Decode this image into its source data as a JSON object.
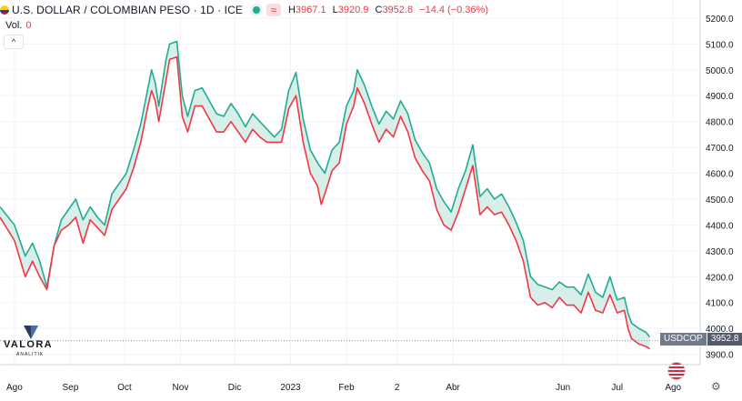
{
  "legend": {
    "title": "U.S. DOLLAR / COLOMBIAN PESO · 1D · ICE",
    "high_label": "H",
    "high": "3967.1",
    "low_label": "L",
    "low": "3920.9",
    "close_label": "C",
    "close": "3952.8",
    "change": "−14.4 (−0.36%)",
    "wave_icon": "≈"
  },
  "volume": {
    "label": "Vol.",
    "value": "0"
  },
  "logo": {
    "name": "VALORA",
    "tagline": "ANALITIK"
  },
  "price_badge": {
    "symbol": "USDCOP",
    "price": "3952.8"
  },
  "colors": {
    "up": "#22ab94",
    "down": "#f23645",
    "up_fill": "#d6eee8",
    "down_fill": "#f8d5d8"
  },
  "chart_data": {
    "type": "area",
    "y_ticks": [
      "5200.0",
      "5100.0",
      "5000.0",
      "4900.0",
      "4800.0",
      "4700.0",
      "4600.0",
      "4500.0",
      "4400.0",
      "4300.0",
      "4200.0",
      "4100.0",
      "4000.0",
      "3900.0"
    ],
    "ylim": [
      3860,
      5270
    ],
    "x_ticks": [
      "Ago",
      "Sep",
      "Oct",
      "Nov",
      "Dic",
      "2023",
      "Feb",
      "2",
      "Abr",
      "Jun",
      "Jul",
      "Ago"
    ],
    "x_tick_days": [
      0,
      31,
      61,
      92,
      122,
      153,
      184,
      212,
      243,
      304,
      334,
      365
    ],
    "xlim": [
      -8,
      380
    ],
    "series": [
      {
        "values_high": [
          [
            -8,
            4470
          ],
          [
            0,
            4400
          ],
          [
            6,
            4280
          ],
          [
            10,
            4330
          ],
          [
            14,
            4260
          ],
          [
            18,
            4160
          ],
          [
            22,
            4320
          ],
          [
            26,
            4420
          ],
          [
            30,
            4460
          ],
          [
            34,
            4500
          ],
          [
            38,
            4420
          ],
          [
            42,
            4470
          ],
          [
            46,
            4430
          ],
          [
            50,
            4400
          ],
          [
            54,
            4520
          ],
          [
            58,
            4560
          ],
          [
            62,
            4600
          ],
          [
            66,
            4690
          ],
          [
            70,
            4790
          ],
          [
            74,
            4930
          ],
          [
            76,
            5000
          ],
          [
            78,
            4950
          ],
          [
            80,
            4860
          ],
          [
            84,
            5040
          ],
          [
            86,
            5100
          ],
          [
            90,
            5110
          ],
          [
            93,
            4900
          ],
          [
            96,
            4820
          ],
          [
            100,
            4920
          ],
          [
            104,
            4930
          ],
          [
            108,
            4880
          ],
          [
            112,
            4830
          ],
          [
            116,
            4820
          ],
          [
            120,
            4870
          ],
          [
            124,
            4830
          ],
          [
            128,
            4780
          ],
          [
            132,
            4830
          ],
          [
            136,
            4800
          ],
          [
            140,
            4770
          ],
          [
            144,
            4740
          ],
          [
            148,
            4770
          ],
          [
            152,
            4920
          ],
          [
            156,
            4990
          ],
          [
            160,
            4810
          ],
          [
            164,
            4690
          ],
          [
            168,
            4640
          ],
          [
            170,
            4620
          ],
          [
            172,
            4600
          ],
          [
            176,
            4690
          ],
          [
            180,
            4720
          ],
          [
            184,
            4860
          ],
          [
            188,
            4920
          ],
          [
            190,
            5000
          ],
          [
            194,
            4940
          ],
          [
            198,
            4860
          ],
          [
            202,
            4790
          ],
          [
            206,
            4840
          ],
          [
            210,
            4810
          ],
          [
            214,
            4880
          ],
          [
            218,
            4830
          ],
          [
            222,
            4730
          ],
          [
            226,
            4680
          ],
          [
            230,
            4640
          ],
          [
            234,
            4540
          ],
          [
            238,
            4490
          ],
          [
            242,
            4450
          ],
          [
            246,
            4540
          ],
          [
            250,
            4610
          ],
          [
            254,
            4710
          ],
          [
            258,
            4510
          ],
          [
            262,
            4540
          ],
          [
            266,
            4500
          ],
          [
            270,
            4520
          ],
          [
            274,
            4470
          ],
          [
            278,
            4410
          ],
          [
            282,
            4340
          ],
          [
            286,
            4200
          ],
          [
            290,
            4170
          ],
          [
            294,
            4160
          ],
          [
            298,
            4150
          ],
          [
            302,
            4180
          ],
          [
            306,
            4160
          ],
          [
            310,
            4160
          ],
          [
            314,
            4130
          ],
          [
            318,
            4210
          ],
          [
            322,
            4140
          ],
          [
            326,
            4120
          ],
          [
            330,
            4200
          ],
          [
            334,
            4110
          ],
          [
            338,
            4120
          ],
          [
            340,
            4060
          ],
          [
            342,
            4020
          ],
          [
            346,
            4000
          ],
          [
            350,
            3985
          ],
          [
            352,
            3967
          ]
        ],
        "values_low": [
          [
            -8,
            4430
          ],
          [
            0,
            4340
          ],
          [
            6,
            4200
          ],
          [
            10,
            4260
          ],
          [
            14,
            4200
          ],
          [
            18,
            4150
          ],
          [
            22,
            4320
          ],
          [
            26,
            4380
          ],
          [
            30,
            4400
          ],
          [
            34,
            4430
          ],
          [
            38,
            4330
          ],
          [
            42,
            4420
          ],
          [
            46,
            4390
          ],
          [
            50,
            4360
          ],
          [
            54,
            4460
          ],
          [
            58,
            4500
          ],
          [
            62,
            4540
          ],
          [
            66,
            4620
          ],
          [
            70,
            4720
          ],
          [
            74,
            4860
          ],
          [
            76,
            4920
          ],
          [
            78,
            4880
          ],
          [
            80,
            4800
          ],
          [
            84,
            4960
          ],
          [
            86,
            5040
          ],
          [
            90,
            5050
          ],
          [
            93,
            4820
          ],
          [
            96,
            4760
          ],
          [
            100,
            4860
          ],
          [
            104,
            4860
          ],
          [
            108,
            4810
          ],
          [
            112,
            4760
          ],
          [
            116,
            4760
          ],
          [
            120,
            4800
          ],
          [
            124,
            4760
          ],
          [
            128,
            4720
          ],
          [
            132,
            4770
          ],
          [
            136,
            4740
          ],
          [
            140,
            4720
          ],
          [
            144,
            4720
          ],
          [
            148,
            4720
          ],
          [
            152,
            4850
          ],
          [
            156,
            4900
          ],
          [
            160,
            4720
          ],
          [
            164,
            4600
          ],
          [
            168,
            4550
          ],
          [
            170,
            4480
          ],
          [
            172,
            4520
          ],
          [
            176,
            4610
          ],
          [
            180,
            4640
          ],
          [
            184,
            4790
          ],
          [
            188,
            4860
          ],
          [
            190,
            4930
          ],
          [
            194,
            4870
          ],
          [
            198,
            4790
          ],
          [
            202,
            4720
          ],
          [
            206,
            4770
          ],
          [
            210,
            4740
          ],
          [
            214,
            4820
          ],
          [
            218,
            4760
          ],
          [
            222,
            4660
          ],
          [
            226,
            4610
          ],
          [
            230,
            4570
          ],
          [
            234,
            4460
          ],
          [
            238,
            4400
          ],
          [
            242,
            4380
          ],
          [
            246,
            4450
          ],
          [
            250,
            4540
          ],
          [
            254,
            4630
          ],
          [
            258,
            4440
          ],
          [
            262,
            4470
          ],
          [
            266,
            4440
          ],
          [
            270,
            4450
          ],
          [
            274,
            4400
          ],
          [
            278,
            4340
          ],
          [
            282,
            4260
          ],
          [
            286,
            4120
          ],
          [
            290,
            4090
          ],
          [
            294,
            4100
          ],
          [
            298,
            4080
          ],
          [
            302,
            4120
          ],
          [
            306,
            4090
          ],
          [
            310,
            4090
          ],
          [
            314,
            4060
          ],
          [
            318,
            4140
          ],
          [
            322,
            4070
          ],
          [
            326,
            4060
          ],
          [
            330,
            4130
          ],
          [
            334,
            4060
          ],
          [
            338,
            4070
          ],
          [
            340,
            4000
          ],
          [
            342,
            3960
          ],
          [
            346,
            3940
          ],
          [
            350,
            3930
          ],
          [
            352,
            3921
          ]
        ]
      }
    ],
    "last_price": 3952.8
  }
}
